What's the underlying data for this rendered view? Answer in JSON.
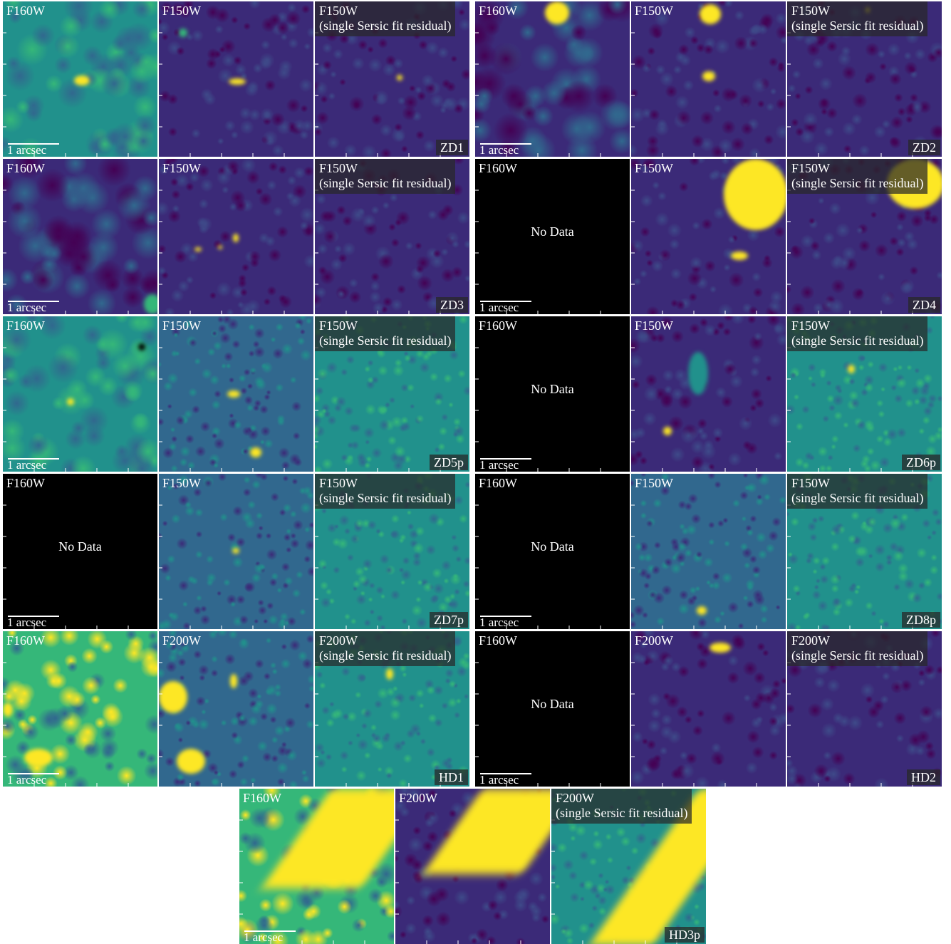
{
  "labels": {
    "f160w": "F160W",
    "f150w": "F150W",
    "f200w": "F200W",
    "residual_suffix": "(single Sersic fit residual)",
    "scalebar": "1 arcsec",
    "no_data": "No Data"
  },
  "colors": {
    "viridis_dark": "#440154",
    "viridis_purple": "#3b2a78",
    "viridis_blue": "#31688e",
    "viridis_teal": "#21918c",
    "viridis_green": "#35b779",
    "viridis_yellow": "#fde725",
    "no_data_bg": "#000000"
  },
  "objects": [
    {
      "id": "ZD1",
      "filter_first": "F160W",
      "filter_nircam": "F150W",
      "has_hst": true
    },
    {
      "id": "ZD2",
      "filter_first": "F160W",
      "filter_nircam": "F150W",
      "has_hst": true
    },
    {
      "id": "ZD3",
      "filter_first": "F160W",
      "filter_nircam": "F150W",
      "has_hst": true
    },
    {
      "id": "ZD4",
      "filter_first": "F160W",
      "filter_nircam": "F150W",
      "has_hst": false
    },
    {
      "id": "ZD5p",
      "filter_first": "F160W",
      "filter_nircam": "F150W",
      "has_hst": true
    },
    {
      "id": "ZD6p",
      "filter_first": "F160W",
      "filter_nircam": "F150W",
      "has_hst": false
    },
    {
      "id": "ZD7p",
      "filter_first": "F160W",
      "filter_nircam": "F150W",
      "has_hst": false
    },
    {
      "id": "ZD8p",
      "filter_first": "F160W",
      "filter_nircam": "F150W",
      "has_hst": false
    },
    {
      "id": "HD1",
      "filter_first": "F160W",
      "filter_nircam": "F200W",
      "has_hst": true
    },
    {
      "id": "HD2",
      "filter_first": "F160W",
      "filter_nircam": "F200W",
      "has_hst": false
    },
    {
      "id": "HD3p",
      "filter_first": "F160W",
      "filter_nircam": "F200W",
      "has_hst": true
    }
  ]
}
